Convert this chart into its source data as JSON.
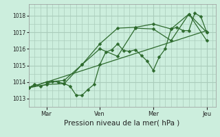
{
  "background_color": "#cceedd",
  "grid_color": "#aaccbb",
  "line_color": "#2d6a2d",
  "marker_color": "#2d6a2d",
  "xlabel": "Pression niveau de la mer( hPa )",
  "ylim": [
    1012.5,
    1018.7
  ],
  "yticks": [
    1013,
    1014,
    1015,
    1016,
    1017,
    1018
  ],
  "xlim": [
    0,
    10.5
  ],
  "day_positions": [
    1.0,
    4.0,
    7.0,
    10.0
  ],
  "day_labels": [
    "Mar",
    "Ven",
    "Mer",
    "Jeu"
  ],
  "series1_x": [
    0.0,
    0.33,
    0.67,
    1.0,
    1.33,
    1.67,
    2.0,
    2.33,
    2.67,
    3.0,
    3.33,
    3.67,
    4.0,
    4.33,
    4.67,
    5.0,
    5.33,
    5.67,
    6.0,
    6.33,
    6.67,
    7.0,
    7.33,
    7.67,
    8.0,
    8.33,
    8.67,
    9.0,
    9.33,
    9.67,
    10.0
  ],
  "series1_y": [
    1013.65,
    1013.85,
    1013.75,
    1013.85,
    1014.05,
    1014.0,
    1013.9,
    1013.75,
    1013.2,
    1013.2,
    1013.55,
    1013.85,
    1015.05,
    1015.8,
    1015.95,
    1016.3,
    1015.9,
    1015.85,
    1015.95,
    1015.6,
    1015.25,
    1014.7,
    1015.5,
    1016.0,
    1017.2,
    1017.3,
    1017.1,
    1017.1,
    1018.15,
    1017.95,
    1017.0
  ],
  "series2_x": [
    0.0,
    1.0,
    2.0,
    3.0,
    4.0,
    5.0,
    6.0,
    7.0,
    8.0,
    9.0,
    10.0
  ],
  "series2_y": [
    1013.65,
    1013.85,
    1013.9,
    1015.05,
    1016.3,
    1017.25,
    1017.3,
    1017.5,
    1017.2,
    1018.1,
    1017.0
  ],
  "series3_x": [
    0.0,
    1.0,
    2.0,
    3.0,
    4.0,
    5.0,
    6.0,
    7.0,
    8.0,
    9.0,
    10.0
  ],
  "series3_y": [
    1013.65,
    1014.0,
    1014.1,
    1015.05,
    1016.0,
    1015.55,
    1017.25,
    1017.2,
    1016.5,
    1018.1,
    1016.5
  ],
  "trend_x": [
    0.0,
    10.0
  ],
  "trend_y": [
    1013.65,
    1017.1
  ]
}
